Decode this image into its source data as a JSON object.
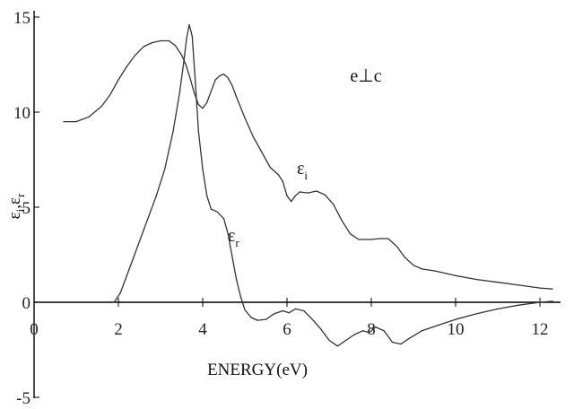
{
  "chart_data": {
    "type": "line",
    "xlabel": "ENERGY(eV)",
    "ylabel": "ε_i, ε_r",
    "ylabel_parts": {
      "eps1": "ε",
      "sub1": "i",
      "sep": ",",
      "eps2": "ε",
      "sub2": "r"
    },
    "xlim": [
      0,
      12.5
    ],
    "ylim": [
      -5,
      15
    ],
    "x_ticks": [
      0,
      2,
      4,
      6,
      8,
      10,
      12
    ],
    "y_ticks": [
      -5,
      0,
      5,
      10,
      15
    ],
    "grid": false,
    "annotation": "e⊥c",
    "series": [
      {
        "name": "ε_i",
        "label_parts": {
          "eps": "ε",
          "sub": "i"
        },
        "x": [
          0.7,
          1.0,
          1.3,
          1.6,
          1.8,
          2.0,
          2.2,
          2.4,
          2.6,
          2.8,
          3.0,
          3.2,
          3.35,
          3.5,
          3.6,
          3.7,
          3.8,
          3.9,
          4.0,
          4.1,
          4.2,
          4.3,
          4.4,
          4.5,
          4.6,
          4.7,
          4.8,
          5.0,
          5.2,
          5.4,
          5.6,
          5.8,
          5.9,
          6.0,
          6.1,
          6.2,
          6.3,
          6.5,
          6.7,
          6.9,
          7.1,
          7.3,
          7.5,
          7.7,
          8.0,
          8.2,
          8.4,
          8.6,
          8.8,
          9.0,
          9.2,
          9.5,
          10.0,
          10.5,
          11.0,
          11.5,
          12.0,
          12.3
        ],
        "values": [
          9.5,
          9.5,
          9.75,
          10.3,
          10.9,
          11.7,
          12.4,
          13.0,
          13.45,
          13.65,
          13.75,
          13.75,
          13.5,
          13.0,
          12.5,
          11.8,
          11.0,
          10.4,
          10.2,
          10.5,
          11.1,
          11.7,
          11.9,
          12.0,
          11.8,
          11.4,
          10.8,
          9.7,
          8.7,
          7.9,
          7.1,
          6.7,
          6.35,
          5.6,
          5.3,
          5.6,
          5.8,
          5.75,
          5.85,
          5.65,
          5.15,
          4.3,
          3.6,
          3.3,
          3.3,
          3.35,
          3.35,
          2.95,
          2.35,
          1.95,
          1.75,
          1.65,
          1.4,
          1.2,
          1.05,
          0.9,
          0.75,
          0.7
        ]
      },
      {
        "name": "ε_r",
        "label_parts": {
          "eps": "ε",
          "sub": "r"
        },
        "x": [
          1.9,
          2.05,
          2.3,
          2.6,
          2.9,
          3.1,
          3.3,
          3.45,
          3.55,
          3.62,
          3.68,
          3.75,
          3.82,
          3.9,
          4.0,
          4.1,
          4.2,
          4.35,
          4.5,
          4.6,
          4.7,
          4.8,
          4.9,
          5.0,
          5.15,
          5.3,
          5.5,
          5.7,
          5.9,
          6.05,
          6.2,
          6.4,
          6.6,
          6.8,
          7.0,
          7.2,
          7.4,
          7.6,
          7.8,
          7.95,
          8.1,
          8.3,
          8.5,
          8.7,
          8.9,
          9.2,
          9.6,
          10.0,
          10.5,
          11.0,
          11.5,
          12.0,
          12.3
        ],
        "values": [
          0.0,
          0.5,
          2.0,
          3.8,
          5.6,
          7.0,
          9.0,
          11.0,
          12.6,
          13.9,
          14.6,
          14.0,
          11.8,
          9.0,
          7.0,
          5.6,
          4.9,
          4.75,
          4.4,
          3.6,
          2.4,
          1.2,
          0.3,
          -0.4,
          -0.8,
          -0.95,
          -0.9,
          -0.6,
          -0.45,
          -0.55,
          -0.35,
          -0.45,
          -0.9,
          -1.4,
          -2.0,
          -2.3,
          -2.0,
          -1.7,
          -1.5,
          -1.6,
          -1.3,
          -1.5,
          -2.1,
          -2.2,
          -1.9,
          -1.5,
          -1.2,
          -0.9,
          -0.6,
          -0.35,
          -0.15,
          0.0,
          0.05
        ]
      }
    ]
  }
}
